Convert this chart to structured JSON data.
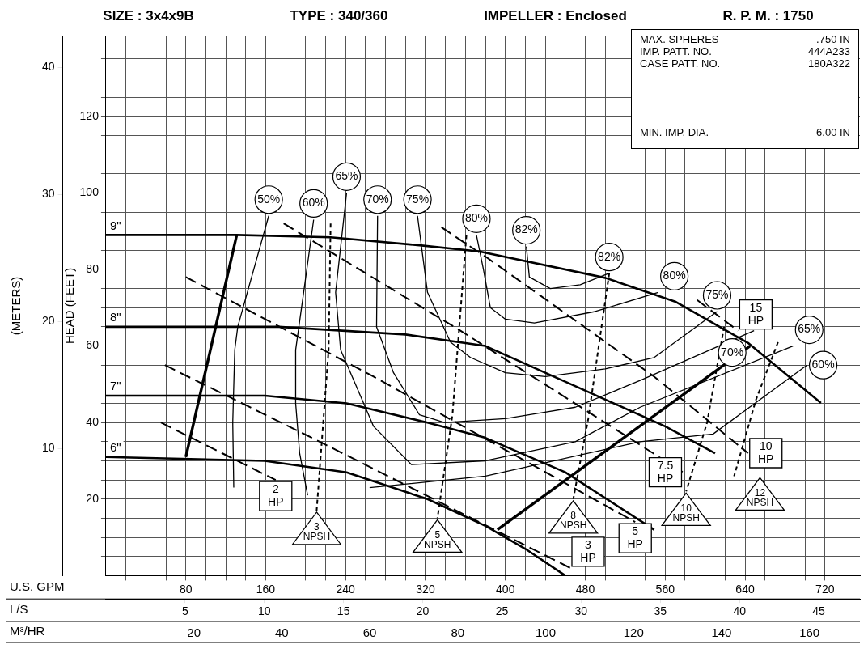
{
  "chart_data": {
    "type": "line",
    "xlabel": "U.S. GPM",
    "x2label": "L/S",
    "ylabel": "HEAD (FEET)",
    "y2label": "(METERS)",
    "annotations": [
      "SIZE : 3x4x9B",
      "TYPE : 340/360",
      "IMPELLER : Enclosed",
      "R. P. M. : 1750",
      "MAX. SPHERES",
      ".750 IN",
      "IMP. PATT. NO.",
      "444A233",
      "CASE PATT. NO.",
      "180A322",
      "MIN. IMP. DIA.",
      "6.00 IN",
      "M³/HR",
      "20",
      "40",
      "60",
      "80",
      "100",
      "120",
      "140",
      "160",
      {
        "text": "50%",
        "x": 163,
        "y": 94
      },
      {
        "text": "60%",
        "x": 208,
        "y": 93
      },
      {
        "text": "65%",
        "x": 241,
        "y": 100
      },
      {
        "text": "70%",
        "x": 272,
        "y": 94
      },
      {
        "text": "75%",
        "x": 312,
        "y": 94
      },
      {
        "text": "80%",
        "x": 371,
        "y": 89
      },
      {
        "text": "82%",
        "x": 421,
        "y": 86
      },
      {
        "text": "82%",
        "x": 504,
        "y": 79
      },
      {
        "text": "80%",
        "x": 553,
        "y": 74
      },
      {
        "text": "75%",
        "x": 612,
        "y": 69
      },
      {
        "text": "70%",
        "x": 649,
        "y": 64
      },
      {
        "text": "65%",
        "x": 688,
        "y": 60
      },
      {
        "text": "60%",
        "x": 702,
        "y": 55
      }
    ],
    "xlim": [
      0,
      755
    ],
    "ylim": [
      0,
      141
    ],
    "y2lim": [
      0,
      42.5
    ],
    "x2lim": [
      0,
      47.6
    ],
    "xticks": [
      {
        "value": 20,
        "label": null
      },
      {
        "value": 40,
        "label": null
      },
      {
        "value": 60,
        "label": null
      },
      80,
      {
        "value": 100,
        "label": null
      },
      {
        "value": 120,
        "label": null
      },
      {
        "value": 140,
        "label": null
      },
      160,
      {
        "value": 180,
        "label": null
      },
      {
        "value": 200,
        "label": null
      },
      {
        "value": 220,
        "label": null
      },
      240,
      {
        "value": 260,
        "label": null
      },
      {
        "value": 280,
        "label": null
      },
      {
        "value": 300,
        "label": null
      },
      320,
      {
        "value": 340,
        "label": null
      },
      {
        "value": 360,
        "label": null
      },
      {
        "value": 380,
        "label": null
      },
      400,
      {
        "value": 420,
        "label": null
      },
      {
        "value": 440,
        "label": null
      },
      {
        "value": 460,
        "label": null
      },
      480,
      {
        "value": 500,
        "label": null
      },
      {
        "value": 520,
        "label": null
      },
      {
        "value": 540,
        "label": null
      },
      560,
      {
        "value": 580,
        "label": null
      },
      {
        "value": 600,
        "label": null
      },
      {
        "value": 620,
        "label": null
      },
      640,
      {
        "value": 660,
        "label": null
      },
      {
        "value": 680,
        "label": null
      },
      {
        "value": 700,
        "label": null
      },
      720,
      {
        "value": 740,
        "label": null
      }
    ],
    "yticks": [
      {
        "value": 5,
        "label": null
      },
      {
        "value": 10,
        "label": null
      },
      {
        "value": 15,
        "label": null
      },
      20,
      {
        "value": 25,
        "label": null
      },
      {
        "value": 30,
        "label": null
      },
      {
        "value": 35,
        "label": null
      },
      40,
      {
        "value": 45,
        "label": null
      },
      {
        "value": 50,
        "label": null
      },
      {
        "value": 55,
        "label": null
      },
      60,
      {
        "value": 65,
        "label": null
      },
      {
        "value": 70,
        "label": null
      },
      {
        "value": 75,
        "label": null
      },
      80,
      {
        "value": 85,
        "label": null
      },
      {
        "value": 90,
        "label": null
      },
      {
        "value": 95,
        "label": null
      },
      100,
      {
        "value": 105,
        "label": null
      },
      {
        "value": 110,
        "label": null
      },
      {
        "value": 115,
        "label": null
      },
      120,
      {
        "value": 125,
        "label": null
      },
      {
        "value": 130,
        "label": null
      },
      {
        "value": 135,
        "label": null
      },
      {
        "value": 140,
        "label": null
      }
    ],
    "y2ticks": [
      10,
      20,
      30,
      40
    ],
    "x2ticks": [
      5,
      10,
      15,
      20,
      25,
      30,
      35,
      40,
      45
    ],
    "grid": true,
    "legend": false,
    "marker": "none",
    "series": [
      {
        "name": "9\"",
        "color": "#000000",
        "line_style": "solid",
        "x": [
          0,
          131,
          225,
          314,
          374,
          500,
          570,
          643,
          716
        ],
        "values": [
          89,
          89,
          88.4,
          86.3,
          84.7,
          77.8,
          71.6,
          60.8,
          45.1
        ]
      },
      {
        "name": "8\"",
        "color": "#000000",
        "line_style": "solid",
        "x": [
          0,
          173,
          300,
          380,
          483,
          560,
          610
        ],
        "values": [
          65,
          65,
          63,
          60,
          48,
          39,
          32
        ]
      },
      {
        "name": "7\"",
        "color": "#000000",
        "line_style": "solid",
        "x": [
          0,
          159,
          241,
          322,
          380,
          460,
          549
        ],
        "values": [
          47,
          47,
          45,
          40,
          36,
          27,
          12
        ]
      },
      {
        "name": "6\"",
        "color": "#000000",
        "line_style": "solid",
        "x": [
          0,
          159,
          241,
          322,
          380,
          420,
          460
        ],
        "values": [
          31,
          30,
          27,
          20,
          13,
          7,
          0
        ]
      },
      {
        "color": "#000000",
        "line_style": "solid",
        "x": [
          80,
          131
        ],
        "values": [
          31,
          89
        ]
      },
      {
        "color": "#000000",
        "line_style": "solid",
        "x": [
          392,
          645
        ],
        "values": [
          12,
          60
        ]
      },
      {
        "color": "#000000",
        "line_style": "solid",
        "x": [
          163,
          132,
          129,
          127,
          128
        ],
        "values": [
          94,
          65,
          59,
          40,
          23
        ]
      },
      {
        "color": "#000000",
        "line_style": "solid",
        "x": [
          208,
          198,
          190,
          190,
          194,
          202
        ],
        "values": [
          93,
          74,
          59,
          45,
          32,
          21
        ]
      },
      {
        "color": "#000000",
        "line_style": "solid",
        "x": [
          702,
          608,
          535,
          380,
          264
        ],
        "values": [
          55,
          37,
          35,
          26,
          23
        ]
      },
      {
        "color": "#000000",
        "line_style": "solid",
        "x": [
          241,
          230,
          235,
          268,
          306,
          380,
          470,
          535,
          688
        ],
        "values": [
          100,
          74,
          59,
          39,
          29,
          30,
          35,
          44,
          60
        ]
      },
      {
        "color": "#000000",
        "line_style": "solid",
        "x": [
          272,
          271,
          288,
          314,
          339,
          400,
          470,
          535,
          649
        ],
        "values": [
          94,
          65,
          53,
          42,
          40,
          41,
          44,
          51,
          64
        ]
      },
      {
        "color": "#000000",
        "line_style": "solid",
        "x": [
          312,
          322,
          345,
          365,
          400,
          440,
          500,
          549,
          612
        ],
        "values": [
          94,
          74,
          61,
          57,
          53,
          52,
          54,
          57,
          69
        ]
      },
      {
        "color": "#000000",
        "line_style": "solid",
        "x": [
          371,
          378,
          385,
          400,
          429,
          490,
          553
        ],
        "values": [
          89,
          80,
          70,
          67,
          66,
          69,
          74
        ]
      },
      {
        "color": "#000000",
        "line_style": "solid",
        "x": [
          421,
          424,
          445,
          475,
          504
        ],
        "values": [
          86,
          78,
          75,
          76,
          79
        ]
      },
      {
        "name": "2 HP",
        "color": "#000000",
        "line_style": "dashed",
        "x": [
          55,
          170
        ],
        "values": [
          40,
          25
        ]
      },
      {
        "name": "3 HP",
        "color": "#000000",
        "line_style": "dashed",
        "x": [
          59,
          214,
          465
        ],
        "values": [
          55,
          35,
          2
        ]
      },
      {
        "name": "5 HP",
        "color": "#000000",
        "line_style": "dashed",
        "x": [
          80,
          268,
          530
        ],
        "values": [
          78,
          52,
          14
        ]
      },
      {
        "name": "7.5 HP",
        "color": "#000000",
        "line_style": "dashed",
        "x": [
          178,
          355,
          578
        ],
        "values": [
          92,
          64,
          27
        ]
      },
      {
        "name": "10 HP",
        "color": "#000000",
        "line_style": "dashed",
        "x": [
          336,
          382,
          549,
          643
        ],
        "values": [
          91,
          83,
          52,
          32
        ]
      },
      {
        "name": "15 HP",
        "color": "#000000",
        "line_style": "dashed",
        "x": [
          592,
          633
        ],
        "values": [
          72,
          64
        ]
      },
      {
        "name": "3 NPSH",
        "color": "#000000",
        "line_style": "dotted",
        "x": [
          225,
          223,
          211
        ],
        "values": [
          92,
          59,
          17
        ]
      },
      {
        "name": "5 NPSH",
        "color": "#000000",
        "line_style": "dotted",
        "x": [
          361,
          347,
          332
        ],
        "values": [
          89,
          42,
          15
        ]
      },
      {
        "name": "8 NPSH",
        "color": "#000000",
        "line_style": "dotted",
        "x": [
          504,
          483,
          468
        ],
        "values": [
          79,
          41,
          20
        ]
      },
      {
        "name": "10 NPSH",
        "color": "#000000",
        "line_style": "dotted",
        "x": [
          619,
          602,
          581
        ],
        "values": [
          65,
          40,
          22
        ]
      },
      {
        "name": "12 NPSH",
        "color": "#000000",
        "line_style": "dotted",
        "x": [
          673,
          651,
          629
        ],
        "values": [
          61,
          46,
          26
        ]
      }
    ]
  }
}
